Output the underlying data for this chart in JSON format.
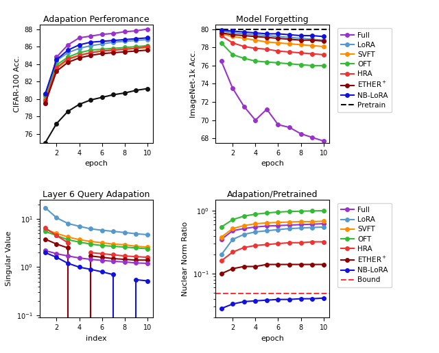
{
  "colors": {
    "Full": "#9932CC",
    "LoRA": "#5599CC",
    "SVFT": "#FF8C00",
    "OFT": "#33BB33",
    "HRA": "#EE3333",
    "ETHER+": "#8B0000",
    "NB-LoRA": "#1111DD",
    "Pretrain": "#000000",
    "Bound": "#FF3333",
    "Black": "#111111"
  },
  "top_left": {
    "title": "Adapation Perferomance",
    "xlabel": "epoch",
    "ylabel": "CIFAR-100 Acc.",
    "epochs": [
      1,
      2,
      3,
      4,
      5,
      6,
      7,
      8,
      9,
      10
    ],
    "Full": [
      79.5,
      84.8,
      86.2,
      87.0,
      87.2,
      87.4,
      87.5,
      87.7,
      87.8,
      88.0
    ],
    "LoRA": [
      80.5,
      84.4,
      85.3,
      85.8,
      86.1,
      86.3,
      86.5,
      86.6,
      86.7,
      86.8
    ],
    "SVFT": [
      80.1,
      83.5,
      84.5,
      85.0,
      85.3,
      85.5,
      85.6,
      85.7,
      85.8,
      85.9
    ],
    "OFT": [
      80.4,
      83.9,
      84.8,
      85.3,
      85.6,
      85.7,
      85.8,
      85.9,
      86.0,
      86.1
    ],
    "HRA": [
      79.8,
      83.6,
      84.6,
      85.0,
      85.3,
      85.5,
      85.6,
      85.7,
      85.8,
      86.0
    ],
    "ETHER+": [
      79.5,
      83.2,
      84.2,
      84.7,
      85.0,
      85.2,
      85.3,
      85.4,
      85.5,
      85.6
    ],
    "NB-LoRA": [
      80.6,
      84.5,
      85.6,
      86.2,
      86.5,
      86.6,
      86.7,
      86.8,
      86.9,
      87.0
    ],
    "Black": [
      75.0,
      77.2,
      78.6,
      79.4,
      79.9,
      80.2,
      80.5,
      80.7,
      81.0,
      81.2
    ],
    "ylim": [
      75.0,
      88.5
    ]
  },
  "top_right": {
    "title": "Model Forgetting",
    "xlabel": "epoch",
    "ylabel": "ImageNet-1k Acc.",
    "epochs": [
      1,
      2,
      3,
      4,
      5,
      6,
      7,
      8,
      9,
      10
    ],
    "Pretrain": 80.0,
    "Full": [
      76.5,
      73.5,
      71.5,
      70.0,
      71.2,
      69.5,
      69.2,
      68.5,
      68.1,
      67.7
    ],
    "LoRA": [
      79.8,
      79.6,
      79.5,
      79.4,
      79.3,
      79.2,
      79.1,
      79.0,
      78.9,
      78.8
    ],
    "SVFT": [
      79.5,
      79.2,
      79.0,
      78.8,
      78.6,
      78.5,
      78.4,
      78.3,
      78.2,
      78.1
    ],
    "OFT": [
      78.5,
      77.2,
      76.8,
      76.5,
      76.4,
      76.3,
      76.2,
      76.1,
      76.0,
      76.0
    ],
    "HRA": [
      79.3,
      78.5,
      78.1,
      77.9,
      77.8,
      77.6,
      77.5,
      77.4,
      77.3,
      77.2
    ],
    "ETHER+": [
      79.6,
      79.4,
      79.3,
      79.2,
      79.1,
      79.0,
      78.9,
      78.8,
      78.8,
      78.7
    ],
    "NB-LoRA": [
      79.9,
      79.8,
      79.7,
      79.6,
      79.5,
      79.5,
      79.4,
      79.3,
      79.3,
      79.2
    ],
    "ylim": [
      67.5,
      80.5
    ]
  },
  "bot_left": {
    "title": "Layer 6 Query Adapation",
    "xlabel": "index",
    "ylabel": "Singular Value",
    "indices": [
      1,
      2,
      3,
      4,
      5,
      6,
      7,
      8,
      9,
      10
    ],
    "LoRA": [
      17.0,
      10.5,
      8.0,
      7.0,
      6.2,
      5.8,
      5.5,
      5.2,
      4.9,
      4.7
    ],
    "SVFT": [
      6.0,
      5.0,
      4.2,
      3.7,
      3.4,
      3.2,
      3.0,
      2.9,
      2.7,
      2.6
    ],
    "OFT": [
      5.5,
      4.5,
      3.7,
      3.3,
      3.0,
      2.8,
      2.7,
      2.6,
      2.5,
      2.4
    ],
    "HRA": [
      6.5,
      4.5,
      3.2,
      1.0,
      2.0,
      1.9,
      1.8,
      1.7,
      1.65,
      1.6
    ],
    "ETHER+": [
      3.8,
      3.0,
      2.5,
      0.1,
      1.7,
      1.6,
      1.5,
      1.45,
      1.4,
      1.4
    ],
    "Full": [
      2.2,
      1.9,
      1.7,
      1.55,
      1.45,
      1.38,
      1.32,
      1.28,
      1.22,
      1.2
    ],
    "NB-LoRA": [
      2.0,
      1.6,
      1.2,
      1.0,
      0.9,
      0.8,
      0.7,
      0.1,
      0.55,
      0.52
    ],
    "ylim_log": [
      0.09,
      25.0
    ],
    "HRA_break": 4,
    "ETHER_break": 4,
    "NB_break": 8
  },
  "bot_right": {
    "title": "Adapation/Pretrained",
    "xlabel": "epoch",
    "ylabel": "Nuclear Norm Ratio",
    "epochs": [
      1,
      2,
      3,
      4,
      5,
      6,
      7,
      8,
      9,
      10
    ],
    "Full": [
      0.35,
      0.48,
      0.52,
      0.55,
      0.57,
      0.58,
      0.59,
      0.6,
      0.61,
      0.62
    ],
    "LoRA": [
      0.2,
      0.35,
      0.42,
      0.46,
      0.48,
      0.5,
      0.52,
      0.53,
      0.54,
      0.55
    ],
    "SVFT": [
      0.38,
      0.52,
      0.58,
      0.62,
      0.64,
      0.65,
      0.66,
      0.67,
      0.67,
      0.68
    ],
    "OFT": [
      0.55,
      0.72,
      0.82,
      0.88,
      0.92,
      0.95,
      0.97,
      0.98,
      0.99,
      1.0
    ],
    "HRA": [
      0.16,
      0.22,
      0.26,
      0.28,
      0.29,
      0.3,
      0.31,
      0.31,
      0.32,
      0.32
    ],
    "ETHER+": [
      0.1,
      0.12,
      0.13,
      0.13,
      0.14,
      0.14,
      0.14,
      0.14,
      0.14,
      0.14
    ],
    "NB-LoRA": [
      0.028,
      0.033,
      0.036,
      0.037,
      0.038,
      0.039,
      0.039,
      0.04,
      0.04,
      0.041
    ],
    "Bound": 0.048,
    "ylim_log": [
      0.02,
      1.5
    ]
  }
}
